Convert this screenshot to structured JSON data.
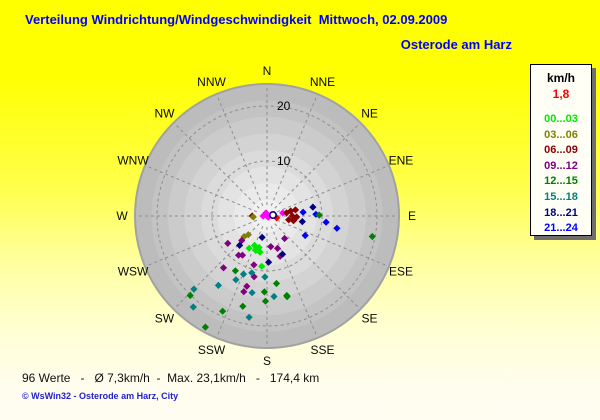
{
  "header": {
    "title": "Verteilung Windrichtung/Windgeschwindigkeit  Mittwoch, 02.09.2009",
    "station": "Osterode am Harz"
  },
  "legend": {
    "header": "km/h",
    "current": "1,8",
    "classes": [
      {
        "label": "00...03",
        "key": "lime"
      },
      {
        "label": "03...06",
        "key": "olive"
      },
      {
        "label": "06...09",
        "key": "maroon"
      },
      {
        "label": "09...12",
        "key": "purple"
      },
      {
        "label": "12...15",
        "key": "green"
      },
      {
        "label": "15...18",
        "key": "teal"
      },
      {
        "label": "18...21",
        "key": "navy"
      },
      {
        "label": "21...24",
        "key": "blue"
      }
    ]
  },
  "footer": {
    "stats": "96 Werte   -   Ø 7,3km/h  -  Max. 23,1km/h   -   174,4 km",
    "copyright": "© WsWin32  -  Osterode am Harz, City"
  },
  "chart_data": {
    "type": "scatter",
    "subtype": "polar-windrose",
    "title": "Verteilung Windrichtung/Windgeschwindigkeit",
    "date": "Mittwoch, 02.09.2009",
    "station": "Osterode am Harz",
    "value_count": 96,
    "mean_kmh": "7,3",
    "max_kmh": "23,1",
    "distance_km": "174,4",
    "current_kmh": "1,8",
    "radial_axis": {
      "ticks": [
        10,
        20
      ],
      "max": 24,
      "grid": "dashed"
    },
    "compass_labels": [
      "N",
      "NNE",
      "NE",
      "ENE",
      "E",
      "ESE",
      "SE",
      "SSE",
      "S",
      "SSW",
      "SW",
      "WSW",
      "W",
      "WNW",
      "NW",
      "NNW"
    ],
    "class_colors": {
      "lime": "#00e800",
      "olive": "#808000",
      "maroon": "#8b0000",
      "purple": "#800080",
      "green": "#008000",
      "teal": "#008080",
      "navy": "#000080",
      "blue": "#0000ff",
      "magenta": "#ff00ff",
      "red": "#ff0000"
    },
    "point_format": [
      "direction_deg",
      "radius_value",
      "class"
    ],
    "points": [
      [
        270,
        2.7,
        "maroon"
      ],
      [
        266,
        2.5,
        "olive"
      ],
      [
        270,
        0.7,
        "magenta"
      ],
      [
        342,
        0.6,
        "magenta"
      ],
      [
        135,
        0.3,
        "magenta"
      ],
      [
        79,
        2.9,
        "magenta"
      ],
      [
        101,
        1.8,
        "red"
      ],
      [
        81,
        3.6,
        "maroon"
      ],
      [
        78,
        4.4,
        "maroon"
      ],
      [
        90,
        4.6,
        "maroon"
      ],
      [
        100,
        4.0,
        "maroon"
      ],
      [
        100,
        4.9,
        "maroon"
      ],
      [
        92,
        5.4,
        "maroon"
      ],
      [
        78,
        5.3,
        "maroon"
      ],
      [
        84,
        6.6,
        "blue"
      ],
      [
        88,
        8.9,
        "blue"
      ],
      [
        96,
        10.8,
        "blue"
      ],
      [
        100,
        12.9,
        "blue"
      ],
      [
        117,
        7.8,
        "blue"
      ],
      [
        79,
        8.5,
        "navy"
      ],
      [
        99,
        6.5,
        "navy"
      ],
      [
        89,
        9.5,
        "green"
      ],
      [
        101,
        19.5,
        "green"
      ],
      [
        166,
        14.9,
        "green"
      ],
      [
        228,
        5.6,
        "olive"
      ],
      [
        225,
        4.8,
        "olive"
      ],
      [
        226,
        6.4,
        "purple"
      ],
      [
        235,
        8.7,
        "purple"
      ],
      [
        216,
        8.8,
        "purple"
      ],
      [
        212,
        8.4,
        "purple"
      ],
      [
        173,
        5.6,
        "purple"
      ],
      [
        142,
        5.2,
        "purple"
      ],
      [
        162,
        7.7,
        "purple"
      ],
      [
        162,
        6.2,
        "purple"
      ],
      [
        195,
        9.2,
        "purple"
      ],
      [
        220,
        12.3,
        "purple"
      ],
      [
        192,
        11.3,
        "purple"
      ],
      [
        196,
        13.3,
        "purple"
      ],
      [
        197,
        14.4,
        "purple"
      ],
      [
        193,
        4.0,
        "navy"
      ],
      [
        223,
        7.3,
        "navy"
      ],
      [
        158,
        7.5,
        "navy"
      ],
      [
        178,
        8.4,
        "navy"
      ],
      [
        203,
        5.8,
        "lime"
      ],
      [
        194,
        5.9,
        "lime"
      ],
      [
        198,
        6.6,
        "lime"
      ],
      [
        191,
        6.7,
        "lime"
      ],
      [
        186,
        9.2,
        "lime"
      ],
      [
        209,
        6.7,
        "lime"
      ],
      [
        210,
        11.5,
        "green"
      ],
      [
        172,
        12.4,
        "green"
      ],
      [
        182,
        13.8,
        "green"
      ],
      [
        181,
        15.5,
        "green"
      ],
      [
        166,
        15.1,
        "green"
      ],
      [
        195,
        17.0,
        "green"
      ],
      [
        205,
        19.1,
        "green"
      ],
      [
        224,
        20.1,
        "green"
      ],
      [
        209,
        23.1,
        "green"
      ],
      [
        202,
        11.4,
        "teal"
      ],
      [
        195,
        10.7,
        "teal"
      ],
      [
        182,
        11.1,
        "teal"
      ],
      [
        215,
        15.4,
        "teal"
      ],
      [
        191,
        14.2,
        "teal"
      ],
      [
        175,
        14.7,
        "teal"
      ],
      [
        190,
        18.7,
        "teal"
      ],
      [
        225,
        18.8,
        "teal"
      ],
      [
        219,
        21.3,
        "teal"
      ],
      [
        206,
        12.9,
        "teal"
      ]
    ],
    "current_marker": {
      "dir": 81,
      "r": 1.1
    }
  }
}
